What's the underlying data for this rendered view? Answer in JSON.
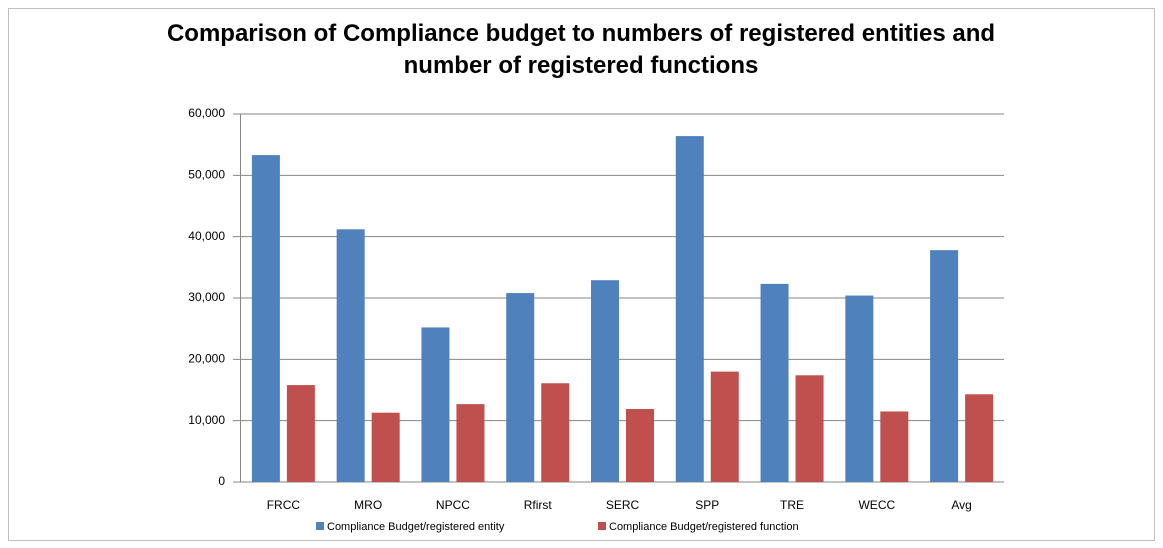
{
  "chart_data": {
    "type": "bar",
    "title": "Comparison of Compliance budget to numbers of registered entities and number of registered functions",
    "categories": [
      "FRCC",
      "MRO",
      "NPCC",
      "Rfirst",
      "SERC",
      "SPP",
      "TRE",
      "WECC",
      "Avg"
    ],
    "series": [
      {
        "name": "Compliance Budget/registered entity",
        "color": "#4f81bd",
        "values": [
          53300,
          41200,
          25200,
          30800,
          32900,
          56400,
          32300,
          30400,
          37800
        ]
      },
      {
        "name": "Compliance Budget/registered function",
        "color": "#c0504d",
        "values": [
          15800,
          11300,
          12700,
          16100,
          11900,
          18000,
          17400,
          11500,
          14300
        ]
      }
    ],
    "ylim": [
      0,
      60000
    ],
    "yticks": [
      0,
      {
        "value": 10000,
        "label": "10,000"
      },
      {
        "value": 20000,
        "label": "20,000"
      },
      {
        "value": 30000,
        "label": "30,000"
      },
      {
        "value": 40000,
        "label": "40,000"
      },
      {
        "value": 50000,
        "label": "50,000"
      },
      {
        "value": 60000,
        "label": "60,000"
      }
    ],
    "grid": true,
    "legend": "bottom"
  }
}
